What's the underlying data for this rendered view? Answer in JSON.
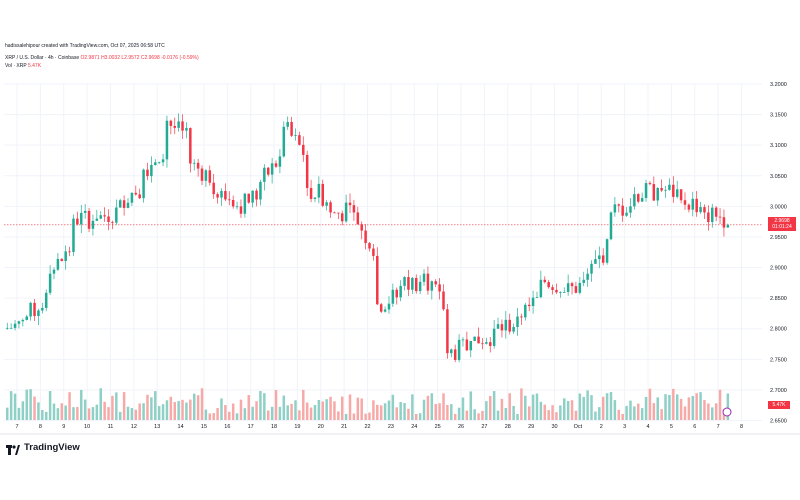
{
  "header": {
    "attribution": "hadissalehipour created with TradingView.com, Oct 07, 2025 06:58 UTC",
    "symbol": "XRP / U.S. Dollar · 4h · Coinbase",
    "ohlc": "O2.9871 H3.0032 L2.9572 C2.9698 -0.0176 (-0.59%)",
    "volume_label": "Vol · XRP",
    "volume_value": "5.47K"
  },
  "price_tag": {
    "price": "2.9698",
    "countdown": "01:01:24"
  },
  "volume_tag": "5.47K",
  "brand": "TradingView",
  "colors": {
    "up": "#22ab94",
    "down": "#f23645",
    "vol_up": "#8fd0c6",
    "vol_down": "#f7a9a7",
    "grid": "#f0f3fa"
  },
  "chart_data": {
    "type": "candlestick",
    "title": "XRP / U.S. Dollar · 4h · Coinbase",
    "x_tick_labels": [
      "7",
      "8",
      "9",
      "10",
      "11",
      "12",
      "13",
      "14",
      "15",
      "16",
      "17",
      "18",
      "19",
      "20",
      "21",
      "22",
      "23",
      "24",
      "25",
      "26",
      "27",
      "28",
      "29",
      "30",
      "Oct",
      "2",
      "3",
      "4",
      "5",
      "6",
      "7",
      "8"
    ],
    "y_tick_labels": [
      "2.6500",
      "2.7000",
      "2.7500",
      "2.8000",
      "2.8500",
      "2.9000",
      "2.9500",
      "3.0000",
      "3.0500",
      "3.1000",
      "3.1500",
      "3.2000"
    ],
    "ylim": [
      2.64,
      3.23
    ],
    "grid": true,
    "last_price": 2.9698,
    "daily_closes": [
      {
        "date": "7",
        "close": 2.82
      },
      {
        "date": "8",
        "close": 2.89
      },
      {
        "date": "9",
        "close": 2.98
      },
      {
        "date": "10",
        "close": 2.98
      },
      {
        "date": "11",
        "close": 3.01
      },
      {
        "date": "12",
        "close": 3.06
      },
      {
        "date": "13",
        "close": 3.14
      },
      {
        "date": "14",
        "close": 3.07
      },
      {
        "date": "15",
        "close": 3.02
      },
      {
        "date": "16",
        "close": 3.0
      },
      {
        "date": "17",
        "close": 3.04
      },
      {
        "date": "18",
        "close": 3.13
      },
      {
        "date": "19",
        "close": 3.03
      },
      {
        "date": "20",
        "close": 2.99
      },
      {
        "date": "21",
        "close": 2.99
      },
      {
        "date": "22",
        "close": 2.84
      },
      {
        "date": "23",
        "close": 2.87
      },
      {
        "date": "24",
        "close": 2.89
      },
      {
        "date": "25",
        "close": 2.76
      },
      {
        "date": "26",
        "close": 2.78
      },
      {
        "date": "27",
        "close": 2.8
      },
      {
        "date": "28",
        "close": 2.82
      },
      {
        "date": "29",
        "close": 2.88
      },
      {
        "date": "30",
        "close": 2.86
      },
      {
        "date": "Oct",
        "close": 2.89
      },
      {
        "date": "2",
        "close": 2.99
      },
      {
        "date": "3",
        "close": 3.02
      },
      {
        "date": "4",
        "close": 3.03
      },
      {
        "date": "5",
        "close": 3.01
      },
      {
        "date": "6",
        "close": 2.99
      },
      {
        "date": "7",
        "close": 2.97
      }
    ]
  }
}
